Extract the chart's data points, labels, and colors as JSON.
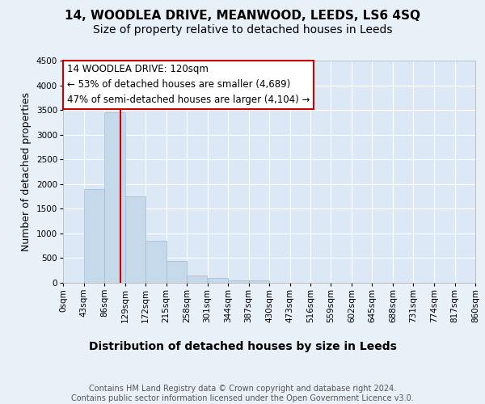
{
  "title": "14, WOODLEA DRIVE, MEANWOOD, LEEDS, LS6 4SQ",
  "subtitle": "Size of property relative to detached houses in Leeds",
  "xlabel": "Distribution of detached houses by size in Leeds",
  "ylabel": "Number of detached properties",
  "bin_edges": [
    0,
    43,
    86,
    129,
    172,
    215,
    258,
    301,
    344,
    387,
    430,
    473,
    516,
    559,
    602,
    645,
    688,
    731,
    774,
    817,
    860
  ],
  "bar_heights": [
    0,
    1900,
    3450,
    1750,
    850,
    450,
    150,
    100,
    50,
    50,
    0,
    0,
    0,
    0,
    0,
    0,
    0,
    0,
    0,
    0
  ],
  "bar_color": "#c6d9ea",
  "bar_edge_color": "#9bbbd4",
  "property_size": 120,
  "vline_color": "#cc0000",
  "ylim": [
    0,
    4500
  ],
  "yticks": [
    0,
    500,
    1000,
    1500,
    2000,
    2500,
    3000,
    3500,
    4000,
    4500
  ],
  "annotation_text": "14 WOODLEA DRIVE: 120sqm\n← 53% of detached houses are smaller (4,689)\n47% of semi-detached houses are larger (4,104) →",
  "annotation_box_facecolor": "#ffffff",
  "annotation_border_color": "#cc0000",
  "plot_bg_color": "#dce8f5",
  "fig_bg_color": "#e8f0f8",
  "grid_color": "#ffffff",
  "footnote": "Contains HM Land Registry data © Crown copyright and database right 2024.\nContains public sector information licensed under the Open Government Licence v3.0.",
  "title_fontsize": 11,
  "subtitle_fontsize": 10,
  "xlabel_fontsize": 10,
  "ylabel_fontsize": 9,
  "tick_label_fontsize": 7.5,
  "annotation_fontsize": 8.5,
  "footnote_fontsize": 7
}
